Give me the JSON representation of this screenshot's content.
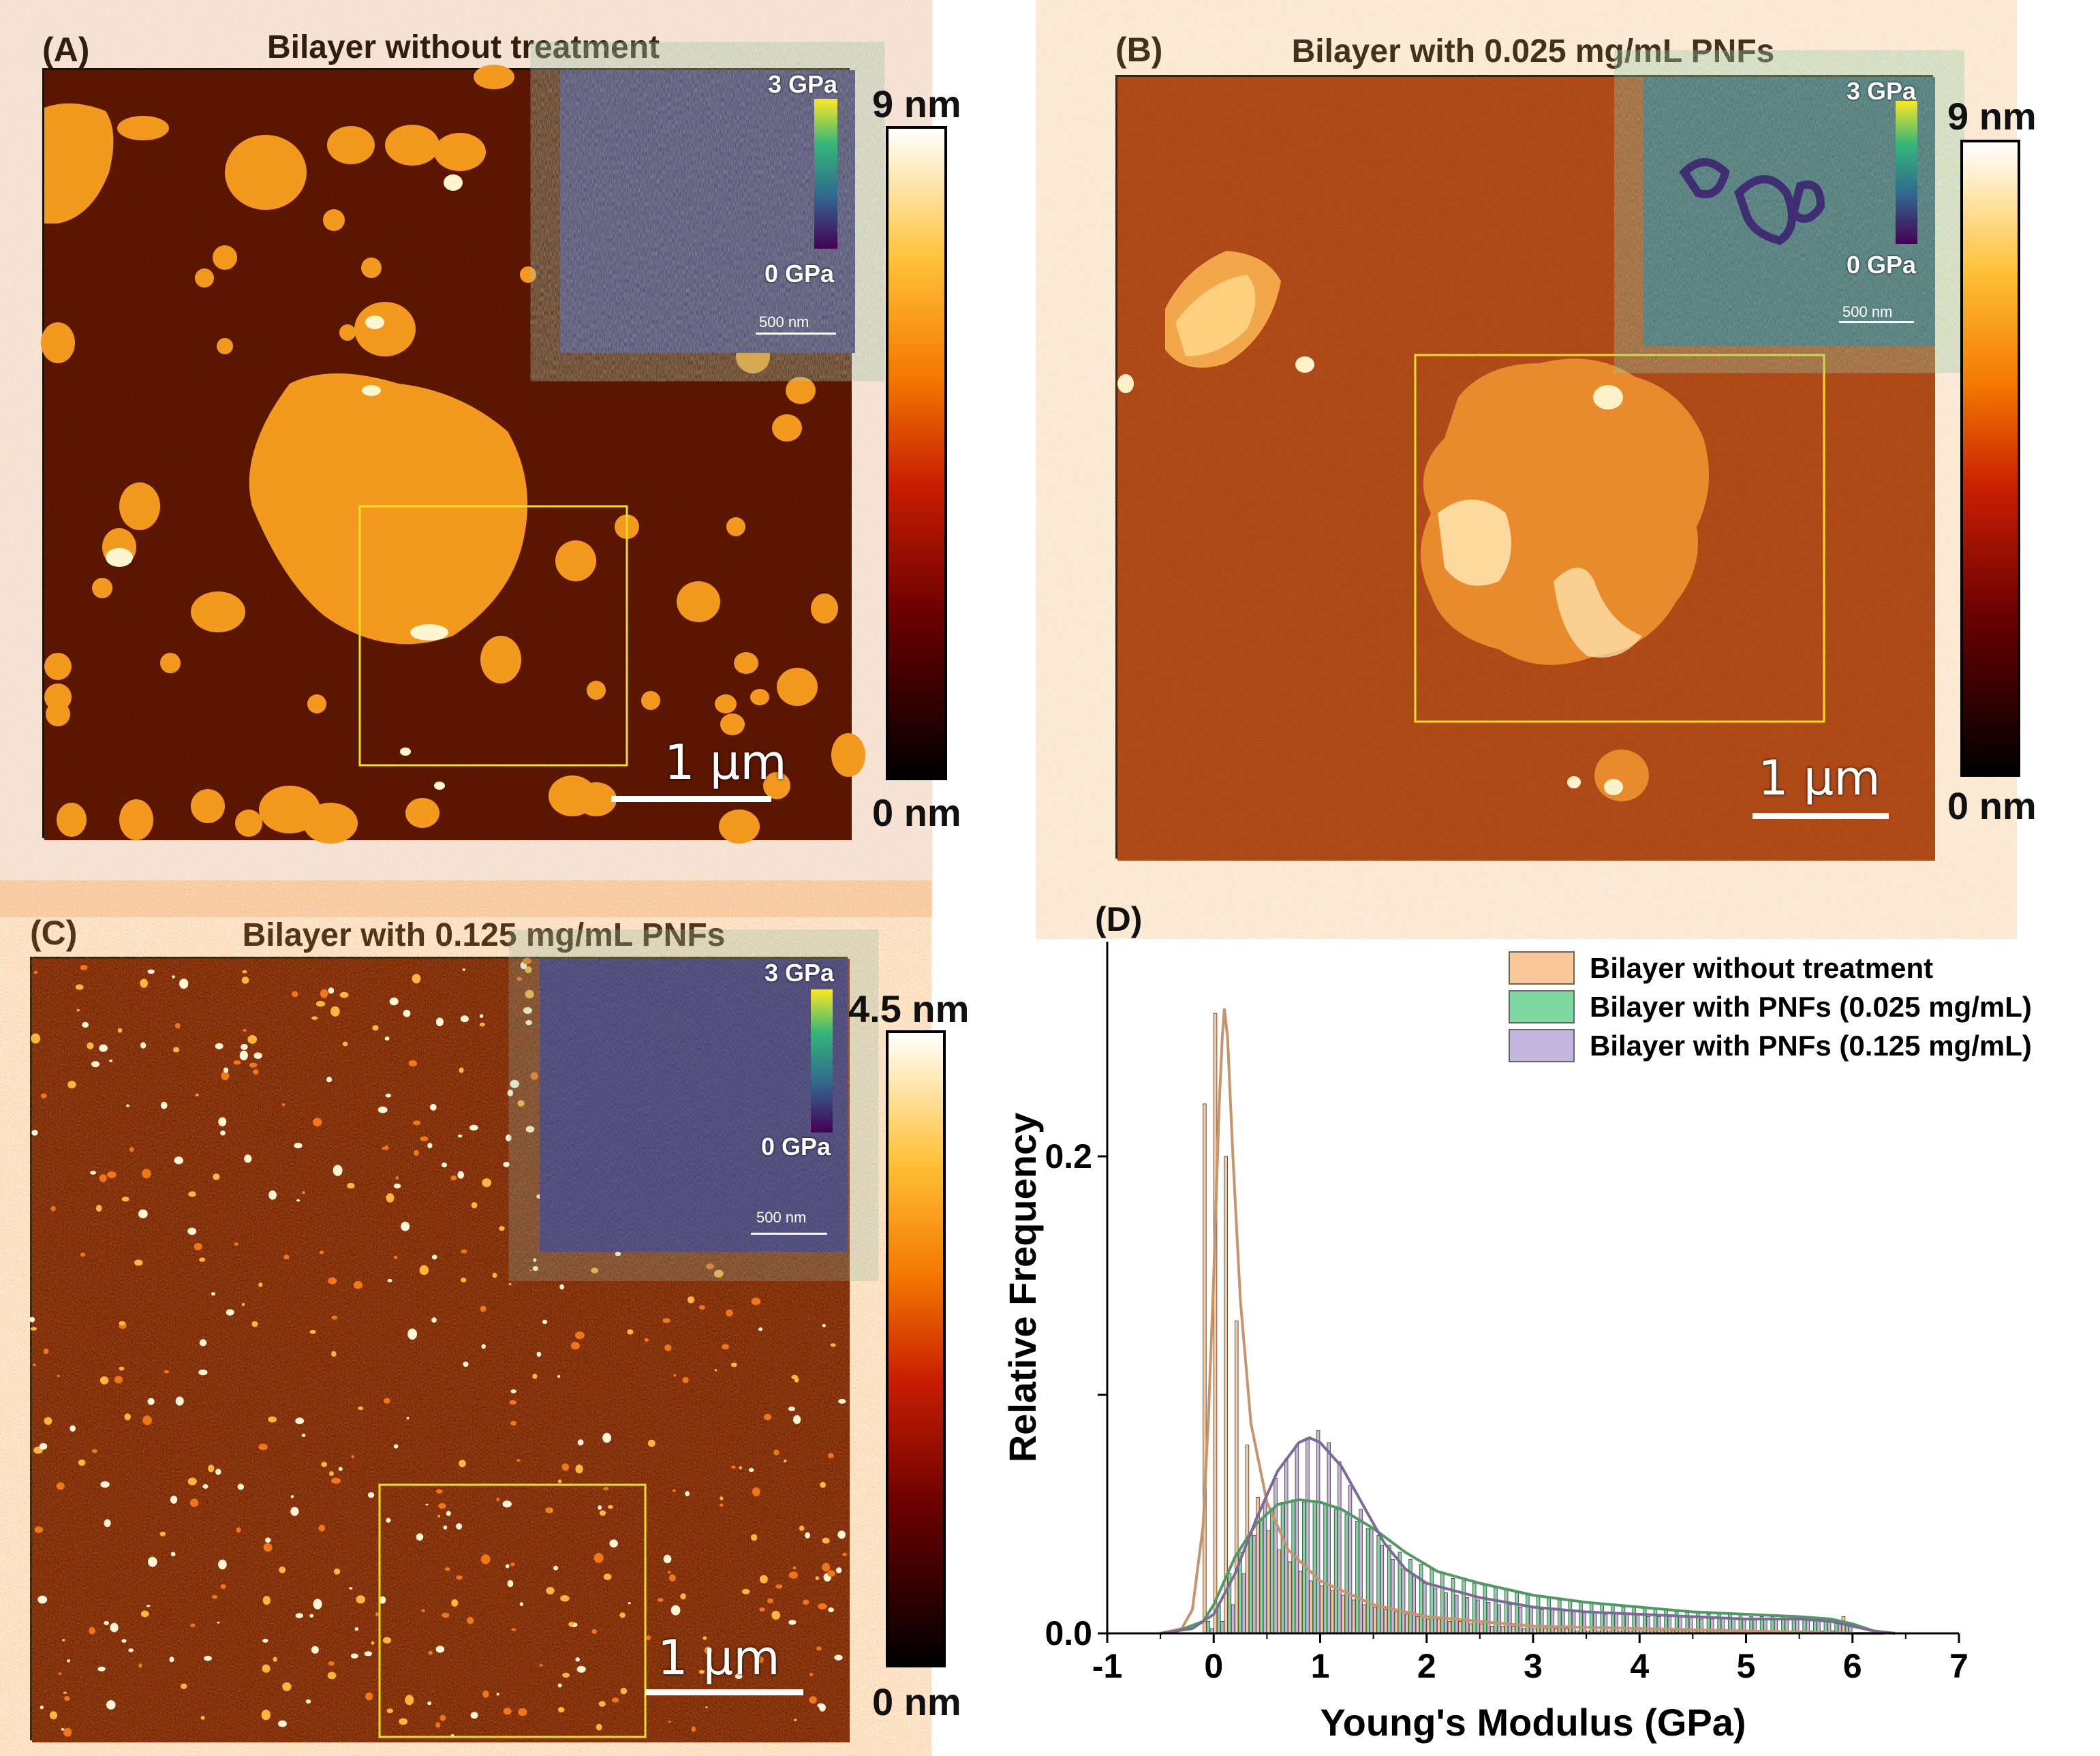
{
  "panels": {
    "a": {
      "label": "(A)",
      "title": "Bilayer without treatment",
      "colorbar_max": "9 nm",
      "colorbar_min": "0 nm",
      "scalebar": "1 µm",
      "inset": {
        "max": "3 GPa",
        "min": "0 GPa",
        "scalebar": "500 nm"
      }
    },
    "b": {
      "label": "(B)",
      "title": "Bilayer with 0.025 mg/mL PNFs",
      "colorbar_max": "9 nm",
      "colorbar_min": "0 nm",
      "scalebar": "1 µm",
      "inset": {
        "max": "3 GPa",
        "min": "0 GPa",
        "scalebar": "500 nm"
      }
    },
    "c": {
      "label": "(C)",
      "title": "Bilayer with 0.125 mg/mL PNFs",
      "colorbar_max": "4.5 nm",
      "colorbar_min": "0 nm",
      "scalebar": "1 µm",
      "inset": {
        "max": "3 GPa",
        "min": "0 GPa",
        "scalebar": "500 nm"
      }
    },
    "d": {
      "label": "(D)"
    }
  },
  "colors": {
    "afmhot_dark": "#3a0400",
    "afmhot_bg": "#4a0a02",
    "domain": "#f39a1e",
    "treated_bg": "#a4360f",
    "viridis_bg": "#3f5a6e",
    "box": "#e8e020",
    "untreated": "#f9c79a",
    "untreated_line": "#c8946a",
    "pnf025": "#7ed9a0",
    "pnf025_line": "#4e9a62",
    "pnf125": "#c4b5dd",
    "pnf125_line": "#7a6a98"
  },
  "chart_data": {
    "type": "histogram",
    "title": "",
    "xlabel": "Young's Modulus (GPa)",
    "ylabel": "Relative Frequency",
    "xlim": [
      -1,
      7
    ],
    "ylim": [
      0,
      0.29
    ],
    "xticks": [
      "-1",
      "0",
      "1",
      "2",
      "3",
      "4",
      "5",
      "6",
      "7"
    ],
    "yticks": [
      {
        "value": 0.0,
        "label": "0.0"
      },
      {
        "value": 0.1,
        "label": ""
      },
      {
        "value": 0.2,
        "label": "0.2"
      }
    ],
    "legend": {
      "position": "top-right",
      "entries": [
        "Bilayer without treatment",
        "Bilayer with PNFs (0.025 mg/mL)",
        "Bilayer with PNFs (0.125 mg/mL)"
      ]
    },
    "bin_width": 0.1,
    "series": [
      {
        "name": "Bilayer without treatment",
        "bins": [
          [
            -0.05,
            0.222
          ],
          [
            0.05,
            0.26
          ],
          [
            0.15,
            0.2
          ],
          [
            0.25,
            0.131
          ],
          [
            0.35,
            0.079
          ],
          [
            0.45,
            0.057
          ],
          [
            0.55,
            0.043
          ],
          [
            0.65,
            0.035
          ],
          [
            0.75,
            0.03
          ],
          [
            0.85,
            0.026
          ],
          [
            0.95,
            0.022
          ],
          [
            1.05,
            0.02
          ],
          [
            1.15,
            0.018
          ],
          [
            1.25,
            0.016
          ],
          [
            1.35,
            0.014
          ],
          [
            1.45,
            0.012
          ],
          [
            1.55,
            0.011
          ],
          [
            1.65,
            0.01
          ],
          [
            1.75,
            0.009
          ],
          [
            1.85,
            0.008
          ],
          [
            1.95,
            0.007
          ],
          [
            2.05,
            0.006
          ],
          [
            2.15,
            0.006
          ],
          [
            2.25,
            0.005
          ],
          [
            2.35,
            0.005
          ],
          [
            2.45,
            0.004
          ],
          [
            2.55,
            0.004
          ],
          [
            2.65,
            0.003
          ],
          [
            2.75,
            0.003
          ],
          [
            2.85,
            0.003
          ],
          [
            2.95,
            0.002
          ],
          [
            3.05,
            0.002
          ],
          [
            3.15,
            0.002
          ],
          [
            3.25,
            0.002
          ],
          [
            3.35,
            0.002
          ],
          [
            3.45,
            0.001
          ],
          [
            3.55,
            0.001
          ],
          [
            3.65,
            0.001
          ],
          [
            3.75,
            0.001
          ],
          [
            3.85,
            0.001
          ],
          [
            3.95,
            0.001
          ],
          [
            4.05,
            0.001
          ],
          [
            4.15,
            0.001
          ],
          [
            4.25,
            0.001
          ],
          [
            4.35,
            0.001
          ],
          [
            4.45,
            0.001
          ],
          [
            4.55,
            0.001
          ],
          [
            4.65,
            0.001
          ],
          [
            4.75,
            0.001
          ],
          [
            4.85,
            0.001
          ],
          [
            4.95,
            0.001
          ],
          [
            5.05,
            0.001
          ],
          [
            5.15,
            0.001
          ],
          [
            5.25,
            0.001
          ],
          [
            5.35,
            0.001
          ],
          [
            5.45,
            0.001
          ],
          [
            5.55,
            0.001
          ],
          [
            5.65,
            0.001
          ],
          [
            5.75,
            0.001
          ],
          [
            5.85,
            0.001
          ],
          [
            5.95,
            0.007
          ]
        ],
        "fit": [
          [
            -0.5,
            0.0
          ],
          [
            -0.3,
            0.002
          ],
          [
            -0.2,
            0.01
          ],
          [
            -0.1,
            0.045
          ],
          [
            -0.05,
            0.09
          ],
          [
            0.0,
            0.15
          ],
          [
            0.05,
            0.22
          ],
          [
            0.08,
            0.25
          ],
          [
            0.1,
            0.262
          ],
          [
            0.13,
            0.25
          ],
          [
            0.18,
            0.2
          ],
          [
            0.25,
            0.14
          ],
          [
            0.35,
            0.088
          ],
          [
            0.5,
            0.055
          ],
          [
            0.7,
            0.035
          ],
          [
            1.0,
            0.022
          ],
          [
            1.5,
            0.012
          ],
          [
            2.0,
            0.007
          ],
          [
            3.0,
            0.003
          ],
          [
            4.0,
            0.002
          ],
          [
            5.0,
            0.001
          ],
          [
            6.0,
            0.0
          ],
          [
            6.3,
            0.0
          ]
        ]
      },
      {
        "name": "Bilayer with PNFs (0.025 mg/mL)",
        "bins": [
          [
            -0.05,
            0.005
          ],
          [
            0.05,
            0.012
          ],
          [
            0.15,
            0.025
          ],
          [
            0.25,
            0.034
          ],
          [
            0.35,
            0.042
          ],
          [
            0.45,
            0.048
          ],
          [
            0.55,
            0.052
          ],
          [
            0.65,
            0.055
          ],
          [
            0.75,
            0.056
          ],
          [
            0.85,
            0.055
          ],
          [
            0.95,
            0.055
          ],
          [
            1.05,
            0.054
          ],
          [
            1.15,
            0.052
          ],
          [
            1.25,
            0.05
          ],
          [
            1.35,
            0.047
          ],
          [
            1.45,
            0.044
          ],
          [
            1.55,
            0.041
          ],
          [
            1.65,
            0.037
          ],
          [
            1.75,
            0.034
          ],
          [
            1.85,
            0.031
          ],
          [
            1.95,
            0.029
          ],
          [
            2.05,
            0.027
          ],
          [
            2.15,
            0.025
          ],
          [
            2.25,
            0.023
          ],
          [
            2.35,
            0.022
          ],
          [
            2.45,
            0.021
          ],
          [
            2.55,
            0.02
          ],
          [
            2.65,
            0.019
          ],
          [
            2.75,
            0.018
          ],
          [
            2.85,
            0.017
          ],
          [
            2.95,
            0.016
          ],
          [
            3.05,
            0.016
          ],
          [
            3.15,
            0.015
          ],
          [
            3.25,
            0.014
          ],
          [
            3.35,
            0.014
          ],
          [
            3.45,
            0.013
          ],
          [
            3.55,
            0.013
          ],
          [
            3.65,
            0.012
          ],
          [
            3.75,
            0.012
          ],
          [
            3.85,
            0.011
          ],
          [
            3.95,
            0.011
          ],
          [
            4.05,
            0.011
          ],
          [
            4.15,
            0.01
          ],
          [
            4.25,
            0.01
          ],
          [
            4.35,
            0.009
          ],
          [
            4.45,
            0.009
          ],
          [
            4.55,
            0.009
          ],
          [
            4.65,
            0.008
          ],
          [
            4.75,
            0.008
          ],
          [
            4.85,
            0.008
          ],
          [
            4.95,
            0.008
          ],
          [
            5.05,
            0.007
          ],
          [
            5.15,
            0.007
          ],
          [
            5.25,
            0.007
          ],
          [
            5.35,
            0.007
          ],
          [
            5.45,
            0.007
          ],
          [
            5.55,
            0.007
          ],
          [
            5.65,
            0.006
          ],
          [
            5.75,
            0.006
          ],
          [
            5.85,
            0.005
          ],
          [
            5.95,
            0.004
          ]
        ],
        "fit": [
          [
            -0.4,
            0.0
          ],
          [
            -0.1,
            0.005
          ],
          [
            0.0,
            0.012
          ],
          [
            0.2,
            0.032
          ],
          [
            0.4,
            0.046
          ],
          [
            0.6,
            0.054
          ],
          [
            0.8,
            0.056
          ],
          [
            1.0,
            0.055
          ],
          [
            1.2,
            0.052
          ],
          [
            1.5,
            0.044
          ],
          [
            1.8,
            0.034
          ],
          [
            2.1,
            0.026
          ],
          [
            2.5,
            0.021
          ],
          [
            3.0,
            0.016
          ],
          [
            3.5,
            0.013
          ],
          [
            4.0,
            0.011
          ],
          [
            4.5,
            0.009
          ],
          [
            5.0,
            0.008
          ],
          [
            5.5,
            0.007
          ],
          [
            5.8,
            0.006
          ],
          [
            6.0,
            0.004
          ],
          [
            6.2,
            0.001
          ],
          [
            6.4,
            0.0
          ]
        ]
      },
      {
        "name": "Bilayer with PNFs (0.125 mg/mL)",
        "bins": [
          [
            -0.05,
            0.002
          ],
          [
            0.05,
            0.005
          ],
          [
            0.15,
            0.012
          ],
          [
            0.25,
            0.025
          ],
          [
            0.35,
            0.041
          ],
          [
            0.45,
            0.055
          ],
          [
            0.55,
            0.065
          ],
          [
            0.65,
            0.073
          ],
          [
            0.75,
            0.079
          ],
          [
            0.85,
            0.082
          ],
          [
            0.95,
            0.085
          ],
          [
            1.05,
            0.08
          ],
          [
            1.15,
            0.072
          ],
          [
            1.25,
            0.062
          ],
          [
            1.35,
            0.052
          ],
          [
            1.45,
            0.044
          ],
          [
            1.55,
            0.037
          ],
          [
            1.65,
            0.031
          ],
          [
            1.75,
            0.027
          ],
          [
            1.85,
            0.024
          ],
          [
            1.95,
            0.021
          ],
          [
            2.05,
            0.019
          ],
          [
            2.15,
            0.017
          ],
          [
            2.25,
            0.016
          ],
          [
            2.35,
            0.015
          ],
          [
            2.45,
            0.014
          ],
          [
            2.55,
            0.013
          ],
          [
            2.65,
            0.012
          ],
          [
            2.75,
            0.012
          ],
          [
            2.85,
            0.011
          ],
          [
            2.95,
            0.011
          ],
          [
            3.05,
            0.01
          ],
          [
            3.15,
            0.01
          ],
          [
            3.25,
            0.01
          ],
          [
            3.35,
            0.009
          ],
          [
            3.45,
            0.009
          ],
          [
            3.55,
            0.009
          ],
          [
            3.65,
            0.008
          ],
          [
            3.75,
            0.008
          ],
          [
            3.85,
            0.008
          ],
          [
            3.95,
            0.008
          ],
          [
            4.05,
            0.007
          ],
          [
            4.15,
            0.007
          ],
          [
            4.25,
            0.007
          ],
          [
            4.35,
            0.007
          ],
          [
            4.45,
            0.007
          ],
          [
            4.55,
            0.006
          ],
          [
            4.65,
            0.006
          ],
          [
            4.75,
            0.006
          ],
          [
            4.85,
            0.006
          ],
          [
            4.95,
            0.006
          ],
          [
            5.05,
            0.006
          ],
          [
            5.15,
            0.006
          ],
          [
            5.25,
            0.006
          ],
          [
            5.35,
            0.006
          ],
          [
            5.45,
            0.006
          ],
          [
            5.55,
            0.006
          ],
          [
            5.65,
            0.005
          ],
          [
            5.75,
            0.005
          ],
          [
            5.85,
            0.005
          ],
          [
            5.95,
            0.004
          ]
        ],
        "fit": [
          [
            -0.5,
            0.0
          ],
          [
            -0.2,
            0.002
          ],
          [
            0.0,
            0.008
          ],
          [
            0.2,
            0.025
          ],
          [
            0.4,
            0.048
          ],
          [
            0.6,
            0.068
          ],
          [
            0.8,
            0.08
          ],
          [
            0.9,
            0.082
          ],
          [
            1.0,
            0.08
          ],
          [
            1.2,
            0.07
          ],
          [
            1.4,
            0.054
          ],
          [
            1.6,
            0.038
          ],
          [
            1.8,
            0.027
          ],
          [
            2.0,
            0.021
          ],
          [
            2.5,
            0.015
          ],
          [
            3.0,
            0.011
          ],
          [
            3.5,
            0.009
          ],
          [
            4.0,
            0.008
          ],
          [
            4.5,
            0.007
          ],
          [
            5.0,
            0.006
          ],
          [
            5.5,
            0.006
          ],
          [
            5.8,
            0.005
          ],
          [
            6.0,
            0.003
          ],
          [
            6.2,
            0.001
          ],
          [
            6.4,
            0.0
          ]
        ]
      }
    ]
  }
}
